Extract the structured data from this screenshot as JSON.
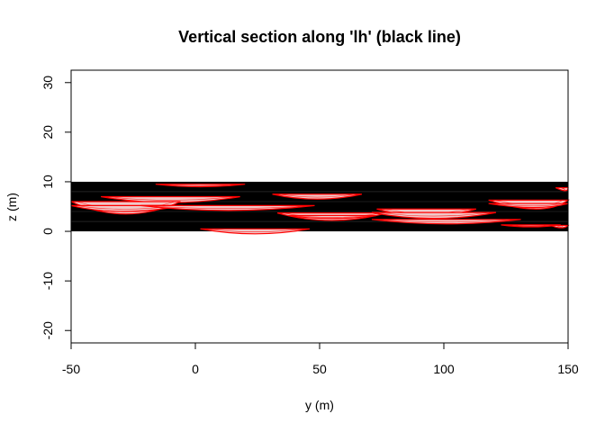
{
  "chart_data": {
    "type": "cross-section",
    "title": "Vertical section along 'lh' (black line)",
    "xlabel": "y (m)",
    "ylabel": "z (m)",
    "xlim": [
      -50,
      150
    ],
    "ylim": [
      -22.5,
      32.5
    ],
    "x_ticks": [
      -50,
      0,
      50,
      100,
      150
    ],
    "x_tick_labels": [
      "-50",
      "0",
      "50",
      "100",
      "150"
    ],
    "y_ticks": [
      -20,
      -10,
      0,
      10,
      20,
      30
    ],
    "y_tick_labels": [
      "-20",
      "-10",
      "0",
      "10",
      "20",
      "30"
    ],
    "section": {
      "z_bottom": 0,
      "z_top": 10,
      "y_start": -50,
      "y_end": 150,
      "color": "#000000"
    },
    "layer_boundaries_z": [
      2,
      4,
      6,
      8
    ],
    "lens_fill": "#f0c8c8",
    "lens_edge": "#ff0000",
    "lenses": [
      {
        "y_center": 2,
        "z_top": 9.5,
        "half_width": 18,
        "depth": 0.5
      },
      {
        "y_center": -10,
        "z_top": 7,
        "half_width": 28,
        "depth": 1.2
      },
      {
        "y_center": -28,
        "z_top": 6,
        "half_width": 22,
        "depth": 2.5
      },
      {
        "y_center": -30,
        "z_top": 5.2,
        "half_width": 25,
        "depth": 1.2
      },
      {
        "y_center": 13,
        "z_top": 5.2,
        "half_width": 35,
        "depth": 1
      },
      {
        "y_center": 49,
        "z_top": 7.5,
        "half_width": 18,
        "depth": 1
      },
      {
        "y_center": 55,
        "z_top": 3.7,
        "half_width": 22,
        "depth": 1.5
      },
      {
        "y_center": 55,
        "z_top": 3.2,
        "half_width": 18,
        "depth": 0.6
      },
      {
        "y_center": 93,
        "z_top": 4.5,
        "half_width": 20,
        "depth": 1.4
      },
      {
        "y_center": 96,
        "z_top": 3.8,
        "half_width": 25,
        "depth": 1.2
      },
      {
        "y_center": 101,
        "z_top": 2.4,
        "half_width": 30,
        "depth": 0.9
      },
      {
        "y_center": 24,
        "z_top": 0.5,
        "half_width": 22,
        "depth": 1
      },
      {
        "y_center": 140,
        "z_top": 6.3,
        "half_width": 22,
        "depth": 1.8
      },
      {
        "y_center": 138,
        "z_top": 5.6,
        "half_width": 20,
        "depth": 0.8
      },
      {
        "y_center": 135,
        "z_top": 1.3,
        "half_width": 12,
        "depth": 0.4
      },
      {
        "y_center": 148,
        "z_top": 1.2,
        "half_width": 5,
        "depth": 0.5
      },
      {
        "y_center": 150,
        "z_top": 8.8,
        "half_width": 5,
        "depth": 0.6
      }
    ]
  }
}
